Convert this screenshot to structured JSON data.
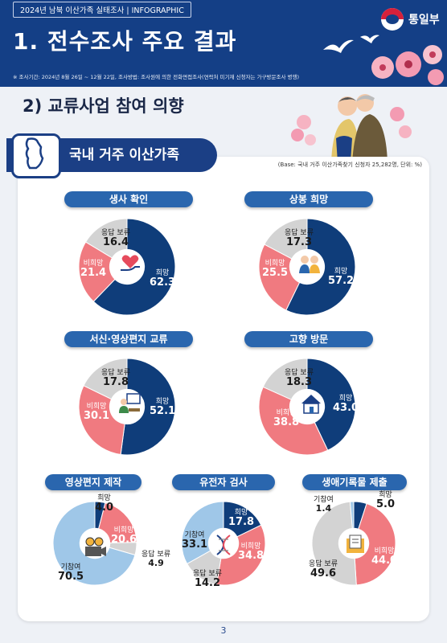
{
  "header": {
    "tag": "2024년 남북 이산가족 실태조사 | INFOGRAPHIC",
    "title": "1. 전수조사 주요 결과",
    "note": "※ 조사기간: 2024년 8월 26일 ~ 12월 22일, 조사방법: 조사원에 의한 전화면접조사(연락처 미기재 신청자는 가구방문조사 병행)",
    "ministry": "통일부"
  },
  "section": {
    "subtitle": "2) 교류사업 참여 의향",
    "band_title": "국내 거주 이산가족",
    "base_note": "(Base: 국내 거주 이산가족찾기 신청자 25,282명, 단위: %)"
  },
  "page_number": "3",
  "colors": {
    "navy": "#0f3d7a",
    "pink": "#f07a80",
    "gray": "#d3d3d3",
    "lightblue": "#9fc7e8",
    "pill": "#2a66ae"
  },
  "chart_data": [
    {
      "type": "pie",
      "title": "생사 확인",
      "series": [
        {
          "name": "희망",
          "value": 62.3,
          "color": "#0f3d7a"
        },
        {
          "name": "비희망",
          "value": 21.4,
          "color": "#f07a80"
        },
        {
          "name": "응답 보류",
          "value": 16.4,
          "color": "#d3d3d3"
        }
      ]
    },
    {
      "type": "pie",
      "title": "상봉 희망",
      "series": [
        {
          "name": "희망",
          "value": 57.2,
          "color": "#0f3d7a"
        },
        {
          "name": "비희망",
          "value": 25.5,
          "color": "#f07a80"
        },
        {
          "name": "응답 보류",
          "value": 17.3,
          "color": "#d3d3d3"
        }
      ]
    },
    {
      "type": "pie",
      "title": "서신·영상편지 교류",
      "series": [
        {
          "name": "희망",
          "value": 52.1,
          "color": "#0f3d7a"
        },
        {
          "name": "비희망",
          "value": 30.1,
          "color": "#f07a80"
        },
        {
          "name": "응답 보류",
          "value": 17.8,
          "color": "#d3d3d3"
        }
      ]
    },
    {
      "type": "pie",
      "title": "고향 방문",
      "series": [
        {
          "name": "희망",
          "value": 43.0,
          "color": "#0f3d7a"
        },
        {
          "name": "비희망",
          "value": 38.8,
          "color": "#f07a80"
        },
        {
          "name": "응답 보류",
          "value": 18.3,
          "color": "#d3d3d3"
        }
      ]
    },
    {
      "type": "pie",
      "title": "영상편지 제작",
      "series": [
        {
          "name": "희망",
          "value": 4.0,
          "color": "#0f3d7a"
        },
        {
          "name": "비희망",
          "value": 20.6,
          "color": "#f07a80"
        },
        {
          "name": "응답 보류",
          "value": 4.9,
          "color": "#d3d3d3"
        },
        {
          "name": "기참여",
          "value": 70.5,
          "color": "#9fc7e8"
        }
      ]
    },
    {
      "type": "pie",
      "title": "유전자 검사",
      "series": [
        {
          "name": "희망",
          "value": 17.8,
          "color": "#0f3d7a"
        },
        {
          "name": "비희망",
          "value": 34.8,
          "color": "#f07a80"
        },
        {
          "name": "응답 보류",
          "value": 14.2,
          "color": "#d3d3d3"
        },
        {
          "name": "기참여",
          "value": 33.1,
          "color": "#9fc7e8"
        }
      ]
    },
    {
      "type": "pie",
      "title": "생애기록물 제출",
      "series": [
        {
          "name": "희망",
          "value": 5.0,
          "color": "#0f3d7a"
        },
        {
          "name": "비희망",
          "value": 44.0,
          "color": "#f07a80"
        },
        {
          "name": "응답 보류",
          "value": 49.6,
          "color": "#d3d3d3"
        },
        {
          "name": "기참여",
          "value": 1.4,
          "color": "#9fc7e8"
        }
      ]
    }
  ]
}
